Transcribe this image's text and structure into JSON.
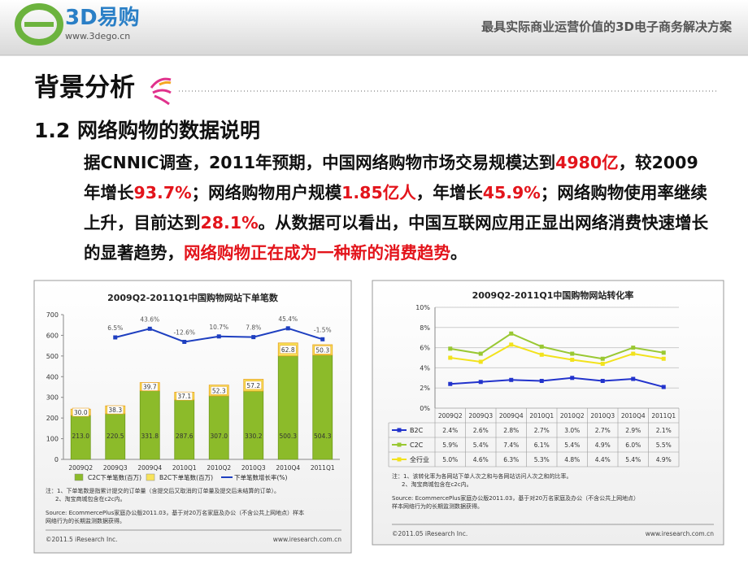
{
  "header": {
    "logo": "3D易购",
    "url": "www.3dego.cn",
    "tagline": "最具实际商业运营价值的3D电子商务解决方案"
  },
  "title": "背景分析",
  "subtitle": "1.2 网络购物的数据说明",
  "paragraph": [
    {
      "text": "据CNNIC调查，2011年预期，中国网络购物市场交易规模达到"
    },
    {
      "text": "4980亿",
      "emphasis": true
    },
    {
      "text": "，较2009年增长"
    },
    {
      "text": "93.7%",
      "emphasis": true
    },
    {
      "text": "；网络购物用户规模"
    },
    {
      "text": "1.85亿人",
      "emphasis": true
    },
    {
      "text": "，年增长"
    },
    {
      "text": "45.9%",
      "emphasis": true
    },
    {
      "text": "；网络购物使用率继续上升，目前达到"
    },
    {
      "text": "28.1%",
      "emphasis": true
    },
    {
      "text": "。从数据可以看出，中国互联网应用正显出网络消费快速增长的显著趋势，"
    },
    {
      "text": "网络购物正在成为一种新的消费趋势",
      "emphasis": true
    },
    {
      "text": "。"
    }
  ],
  "chart_data": [
    {
      "type": "bar",
      "title": "2009Q2-2011Q1中国购物网站下单笔数",
      "categories": [
        "2009Q2",
        "2009Q3",
        "2009Q4",
        "2010Q1",
        "2010Q2",
        "2010Q3",
        "2010Q4",
        "2011Q1"
      ],
      "series": [
        {
          "name": "C2C下单笔数(百万)",
          "color": "#8cbb2a",
          "values": [
            213.0,
            220.5,
            331.8,
            287.6,
            307.0,
            330.2,
            500.3,
            504.3
          ],
          "value_labels": [
            "213.0",
            "220.5",
            "331.8",
            "287.6",
            "307.0",
            "330.2",
            "500.3",
            "504.3"
          ]
        },
        {
          "name": "B2C下单笔数(百万)",
          "color": "#f7e35a",
          "values": [
            30.0,
            38.3,
            39.7,
            37.1,
            52.3,
            57.2,
            62.8,
            50.3
          ],
          "value_labels": [
            "30.0",
            "38.3",
            "39.7",
            "37.1",
            "52.3",
            "57.2",
            "62.8",
            "50.3"
          ]
        },
        {
          "name": "下单笔数增长率(%)",
          "color": "#1e3fc0",
          "axis": "y2",
          "values": [
            null,
            6.5,
            43.6,
            -12.6,
            10.7,
            7.8,
            45.4,
            -1.5
          ],
          "value_labels": [
            null,
            "6.5%",
            "43.6%",
            "-12.6%",
            "10.7%",
            "7.8%",
            "45.4%",
            "-1.5%"
          ]
        }
      ],
      "ylim": [
        0,
        700
      ],
      "yticks": [
        0,
        100,
        200,
        300,
        400,
        500,
        600,
        700
      ],
      "y2lim": [
        -516,
        104
      ],
      "grid": false,
      "notes": [
        "注：1、下单笔数是指累计提交的订单量（含提交后又取消的订单量及提交后未结算的订单）。",
        "2、淘宝商城包含在c2c内。"
      ],
      "source": [
        "Source: EcommercePlus家庭办公版2011.03，基于对20万名家庭及办公（不含公共上网地点）样本",
        "网络行为的长期监测数据获得。"
      ],
      "copyright": "©2011.5 iResearch Inc.",
      "website": "www.iresearch.com.cn"
    },
    {
      "type": "line",
      "title": "2009Q2-2011Q1中国购物网站转化率",
      "categories": [
        "2009Q2",
        "2009Q3",
        "2009Q4",
        "2010Q1",
        "2010Q2",
        "2010Q3",
        "2010Q4",
        "2011Q1"
      ],
      "series": [
        {
          "name": "B2C",
          "color": "#2233cc",
          "values": [
            2.4,
            2.6,
            2.8,
            2.7,
            3.0,
            2.7,
            2.9,
            2.1
          ],
          "value_labels": [
            "2.4%",
            "2.6%",
            "2.8%",
            "2.7%",
            "3.0%",
            "2.7%",
            "2.9%",
            "2.1%"
          ]
        },
        {
          "name": "C2C",
          "color": "#99c832",
          "values": [
            5.9,
            5.4,
            7.4,
            6.1,
            5.4,
            4.9,
            6.0,
            5.5
          ],
          "value_labels": [
            "5.9%",
            "5.4%",
            "7.4%",
            "6.1%",
            "5.4%",
            "4.9%",
            "6.0%",
            "5.5%"
          ]
        },
        {
          "name": "全行业",
          "color": "#f2e21c",
          "values": [
            5.0,
            4.6,
            6.3,
            5.3,
            4.8,
            4.4,
            5.4,
            4.9
          ],
          "value_labels": [
            "5.0%",
            "4.6%",
            "6.3%",
            "5.3%",
            "4.8%",
            "4.4%",
            "5.4%",
            "4.9%"
          ]
        }
      ],
      "ylim": [
        0,
        10
      ],
      "yticks": [
        {
          "value": 0,
          "label": "0%"
        },
        {
          "value": 2,
          "label": "2%"
        },
        {
          "value": 4,
          "label": "4%"
        },
        {
          "value": 6,
          "label": "6%"
        },
        {
          "value": 8,
          "label": "8%"
        },
        {
          "value": 10,
          "label": "10%"
        }
      ],
      "grid": true,
      "notes": [
        "注：1、该转化率为各网站下单人次之和与各网站访问人次之和的比率。",
        "2、淘宝商城包含在c2c内。"
      ],
      "source": [
        "Source: EcommercePlus家庭办公版2011.03，基于对20万名家庭及办公（不含公共上网地点）",
        "样本网络行为的长期监测数据获得。"
      ],
      "copyright": "©2011.05 iResearch Inc.",
      "website": "www.iresearch.com.cn"
    }
  ]
}
